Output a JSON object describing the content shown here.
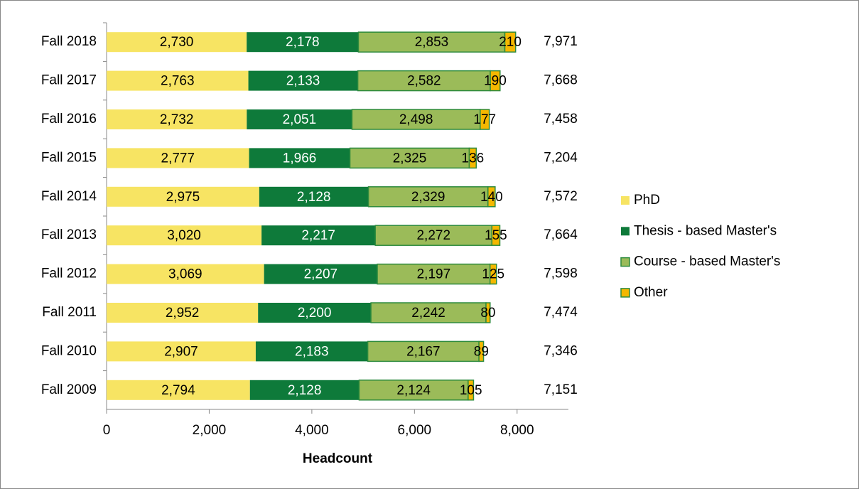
{
  "chart_data": {
    "type": "stacked-bar-horizontal",
    "xlabel": "Headcount",
    "categories": [
      "Fall 2018",
      "Fall 2017",
      "Fall 2016",
      "Fall 2015",
      "Fall 2014",
      "Fall 2013",
      "Fall 2012",
      "Fall 2011",
      "Fall 2010",
      "Fall 2009"
    ],
    "series": [
      {
        "name": "PhD",
        "color": "#f7e463",
        "label_color": "#000000",
        "values": [
          2730,
          2763,
          2732,
          2777,
          2975,
          3020,
          3069,
          2952,
          2907,
          2794
        ],
        "value_labels": [
          "2,730",
          "2,763",
          "2,732",
          "2,777",
          "2,975",
          "3,020",
          "3,069",
          "2,952",
          "2,907",
          "2,794"
        ]
      },
      {
        "name": "Thesis - based Master's",
        "color": "#0e7a3a",
        "label_color": "#ffffff",
        "values": [
          2178,
          2133,
          2051,
          1966,
          2128,
          2217,
          2207,
          2200,
          2183,
          2128
        ],
        "value_labels": [
          "2,178",
          "2,133",
          "2,051",
          "1,966",
          "2,128",
          "2,217",
          "2,207",
          "2,200",
          "2,183",
          "2,128"
        ]
      },
      {
        "name": "Course - based Master's",
        "color": "#9bbb59",
        "border": "#2e8b3e",
        "label_color": "#000000",
        "values": [
          2853,
          2582,
          2498,
          2325,
          2329,
          2272,
          2197,
          2242,
          2167,
          2124
        ],
        "value_labels": [
          "2,853",
          "2,582",
          "2,498",
          "2,325",
          "2,329",
          "2,272",
          "2,197",
          "2,242",
          "2,167",
          "2,124"
        ]
      },
      {
        "name": "Other",
        "color": "#f5b800",
        "border": "#2e8b3e",
        "label_color": "#000000",
        "values": [
          210,
          190,
          177,
          136,
          140,
          155,
          125,
          80,
          89,
          105
        ]
      }
    ],
    "totals": {
      "values": [
        7971,
        7668,
        7458,
        7204,
        7572,
        7664,
        7598,
        7474,
        7346,
        7151
      ],
      "value_labels": [
        "7,971",
        "7,668",
        "7,458",
        "7,204",
        "7,572",
        "7,664",
        "7,598",
        "7,474",
        "7,346",
        "7,151"
      ]
    },
    "xlim": [
      0,
      9000
    ],
    "xticks": [
      0,
      {
        "value": 2000,
        "label": "2,000"
      },
      {
        "value": 4000,
        "label": "4,000"
      },
      {
        "value": 6000,
        "label": "6,000"
      },
      {
        "value": 8000,
        "label": "8,000"
      }
    ],
    "legend": "right"
  }
}
